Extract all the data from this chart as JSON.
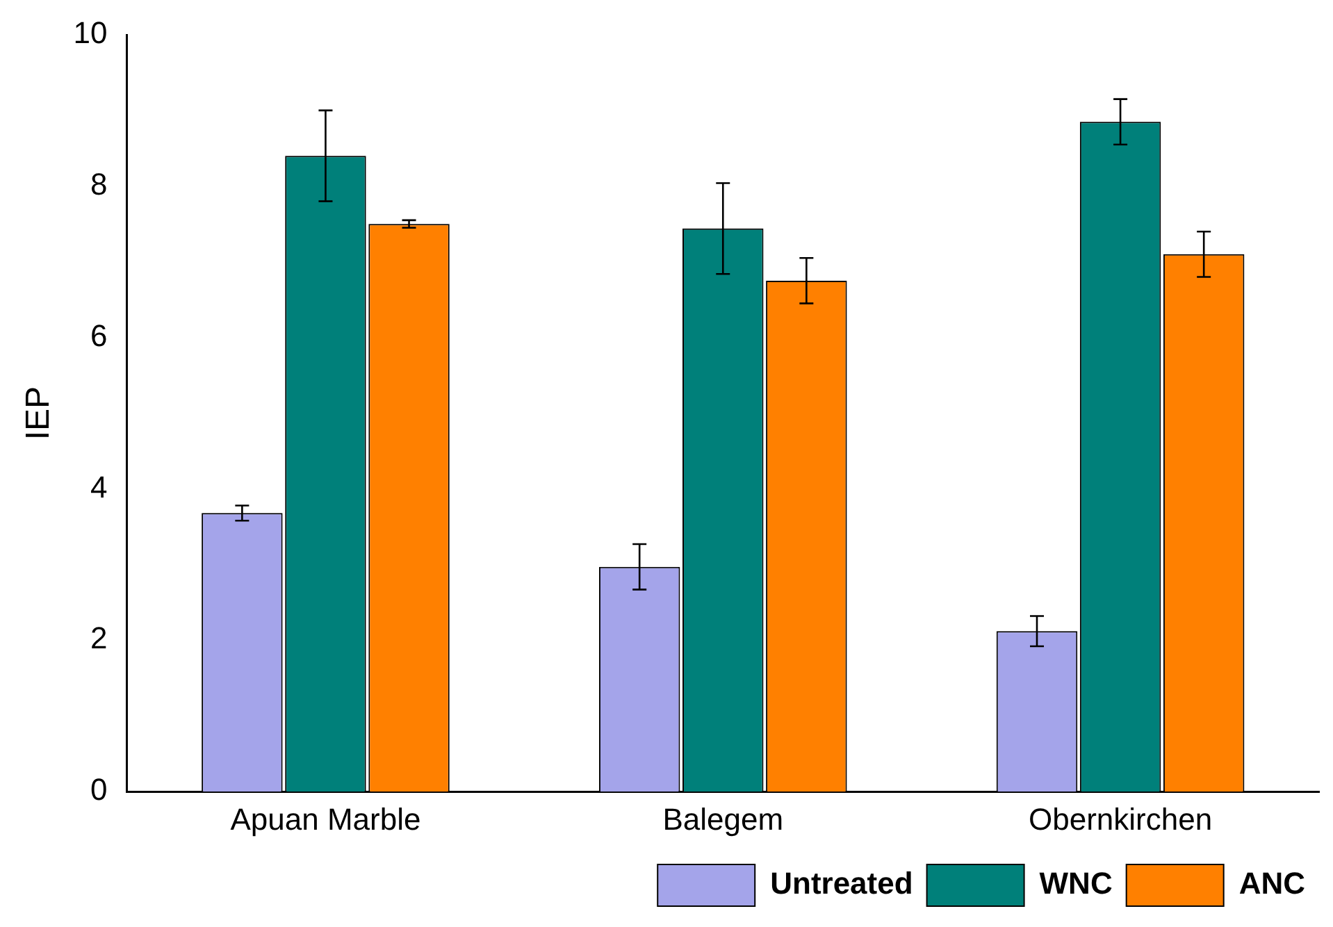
{
  "chart_data": {
    "type": "bar",
    "ylabel": "IEP",
    "categories": [
      "Apuan Marble",
      "Balegem",
      "Obernkirchen"
    ],
    "series": [
      {
        "name": "Untreated",
        "color": "#a4a4ea",
        "values": [
          3.68,
          2.97,
          2.12
        ],
        "errors": [
          0.1,
          0.3,
          0.2
        ]
      },
      {
        "name": "WNC",
        "color": "#00807a",
        "values": [
          8.4,
          7.44,
          8.85
        ],
        "errors": [
          0.6,
          0.6,
          0.3
        ]
      },
      {
        "name": "ANC",
        "color": "#ff8000",
        "values": [
          7.5,
          6.75,
          7.1
        ],
        "errors": [
          0.05,
          0.3,
          0.3
        ]
      }
    ],
    "ylim": [
      0,
      10
    ],
    "yticks": [
      0,
      2,
      4,
      6,
      8,
      10
    ],
    "grid": false,
    "legend": "bottom"
  }
}
